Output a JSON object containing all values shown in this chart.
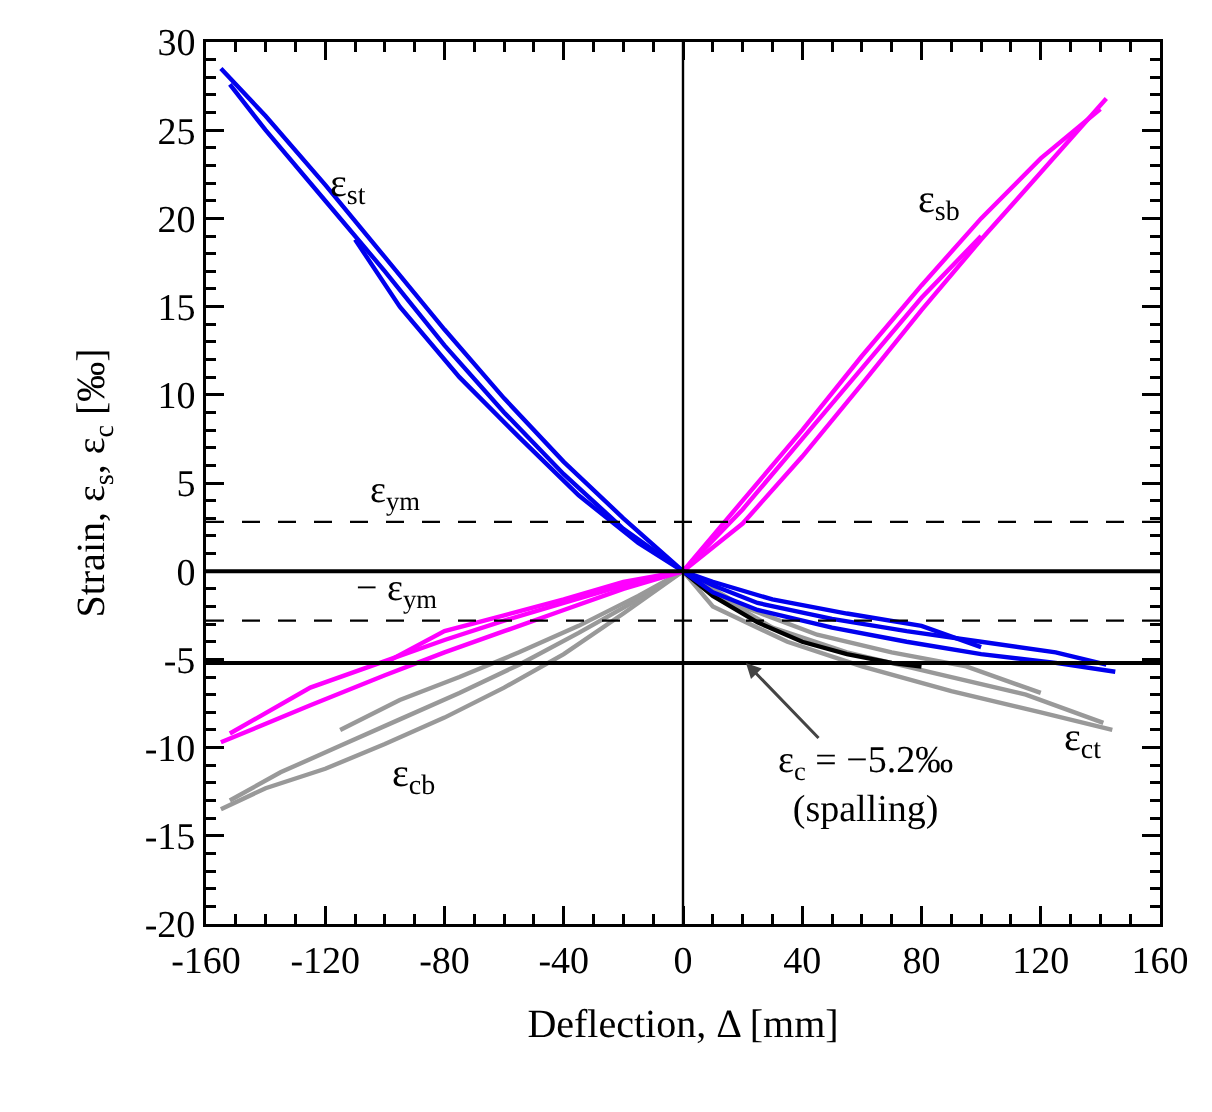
{
  "chart_data": {
    "type": "line",
    "xlabel": "Deflection, Δ [mm]",
    "ylabel": "Strain, ε$_{s}$, ε$_{c}$ [‰]",
    "xlim": [
      -160,
      160
    ],
    "xticks": [
      -160,
      -120,
      -80,
      -40,
      0,
      40,
      80,
      120,
      160
    ],
    "ylim": [
      -20,
      30
    ],
    "yticks": [
      -20,
      -15,
      -10,
      -5,
      0,
      5,
      10,
      15,
      20,
      25,
      30
    ],
    "grid": false,
    "line_style": "solid",
    "series": [
      {
        "color": "#999999",
        "x": [
          -155,
          -140,
          -120,
          -100,
          -80,
          -60,
          -40,
          -20,
          0,
          10,
          35,
          60,
          90,
          120,
          144
        ],
        "values": [
          -13.5,
          -12.3,
          -11.2,
          -9.8,
          -8.3,
          -6.6,
          -4.7,
          -2.4,
          0,
          -2.0,
          -4.0,
          -5.4,
          -6.8,
          -8.0,
          -9.0
        ]
      },
      {
        "color": "#999999",
        "x": [
          -152,
          -135,
          -115,
          -95,
          -75,
          -55,
          -35,
          -15,
          0,
          10,
          30,
          55,
          85,
          115,
          141
        ],
        "values": [
          -13.0,
          -11.4,
          -9.9,
          -8.4,
          -6.9,
          -5.3,
          -3.5,
          -1.6,
          0,
          -1.2,
          -3.2,
          -4.6,
          -5.8,
          -7.0,
          -8.6
        ]
      },
      {
        "color": "#999999",
        "x": [
          -115,
          -95,
          -75,
          -55,
          -35,
          -15,
          0,
          20,
          45,
          70,
          95,
          120
        ],
        "values": [
          -9.0,
          -7.3,
          -6.0,
          -4.6,
          -3.1,
          -1.4,
          0,
          -2.0,
          -3.6,
          -4.6,
          -5.4,
          -6.9
        ]
      },
      {
        "color": "#000000",
        "x": [
          0,
          10,
          25,
          40,
          55,
          70,
          80
        ],
        "values": [
          0,
          -1.4,
          -2.9,
          -4.0,
          -4.7,
          -5.2,
          -5.4
        ]
      },
      {
        "color": "#ff00ff",
        "x": [
          -155,
          -125,
          -100,
          -80,
          -60,
          -40,
          -20,
          0,
          20,
          40,
          60,
          80,
          100,
          120,
          142
        ],
        "values": [
          -9.7,
          -7.6,
          -5.9,
          -4.6,
          -3.4,
          -2.2,
          -1.0,
          0,
          2.7,
          6.5,
          10.6,
          14.8,
          18.8,
          22.6,
          26.8
        ]
      },
      {
        "color": "#ff00ff",
        "x": [
          -152,
          -125,
          -100,
          -80,
          -60,
          -40,
          -20,
          0,
          20,
          40,
          60,
          80,
          100,
          120,
          140
        ],
        "values": [
          -9.2,
          -6.6,
          -5.1,
          -3.9,
          -2.8,
          -1.8,
          -0.8,
          0,
          4,
          8,
          12.2,
          16.2,
          20,
          23.4,
          26.2
        ]
      },
      {
        "color": "#ff00ff",
        "x": [
          -100,
          -80,
          -60,
          -40,
          -20,
          0,
          20,
          40,
          60,
          80,
          100
        ],
        "values": [
          -5.2,
          -3.4,
          -2.5,
          -1.6,
          -0.6,
          0,
          3.5,
          7.5,
          11.5,
          15.5,
          19
        ]
      },
      {
        "color": "#0000ee",
        "x": [
          -155,
          -140,
          -120,
          -100,
          -80,
          -60,
          -40,
          -20,
          0,
          10,
          25,
          50,
          75,
          100,
          125,
          145
        ],
        "values": [
          28.5,
          25.8,
          21.9,
          17.8,
          13.7,
          9.8,
          6.2,
          3.0,
          0,
          -1.2,
          -2.2,
          -3.2,
          -4.0,
          -4.7,
          -5.2,
          -5.7
        ]
      },
      {
        "color": "#0000ee",
        "x": [
          -152,
          -140,
          -120,
          -100,
          -80,
          -60,
          -40,
          -20,
          0,
          10,
          25,
          50,
          75,
          100,
          125,
          142
        ],
        "values": [
          27.6,
          25,
          21,
          17,
          12.8,
          9,
          5.5,
          2.4,
          0,
          -0.8,
          -1.8,
          -2.7,
          -3.4,
          -4.0,
          -4.6,
          -5.3
        ]
      },
      {
        "color": "#0000ee",
        "x": [
          -110,
          -95,
          -75,
          -55,
          -35,
          -15,
          0,
          10,
          30,
          55,
          80,
          100
        ],
        "values": [
          18.8,
          15,
          11,
          7.6,
          4.3,
          1.6,
          0,
          -0.6,
          -1.6,
          -2.4,
          -3.1,
          -4.3
        ]
      }
    ],
    "ref_lines": [
      {
        "axis": "y",
        "value": 2.8,
        "label": "ε$_{ym}$",
        "line_style": "dashed"
      },
      {
        "axis": "y",
        "value": -2.8,
        "label": "− ε$_{ym}$",
        "line_style": "dashed"
      },
      {
        "axis": "y",
        "value": 0,
        "line_style": "solid"
      },
      {
        "axis": "y",
        "value": -5.2,
        "label": "ε$_{c}$ = −5.2‰\n(spalling)",
        "line_style": "solid"
      },
      {
        "axis": "x",
        "value": 0,
        "line_style": "solid"
      }
    ],
    "annotations": [
      "ε$_{st}$",
      "ε$_{sb}$",
      "ε$_{cb}$",
      "ε$_{ct}$"
    ]
  }
}
